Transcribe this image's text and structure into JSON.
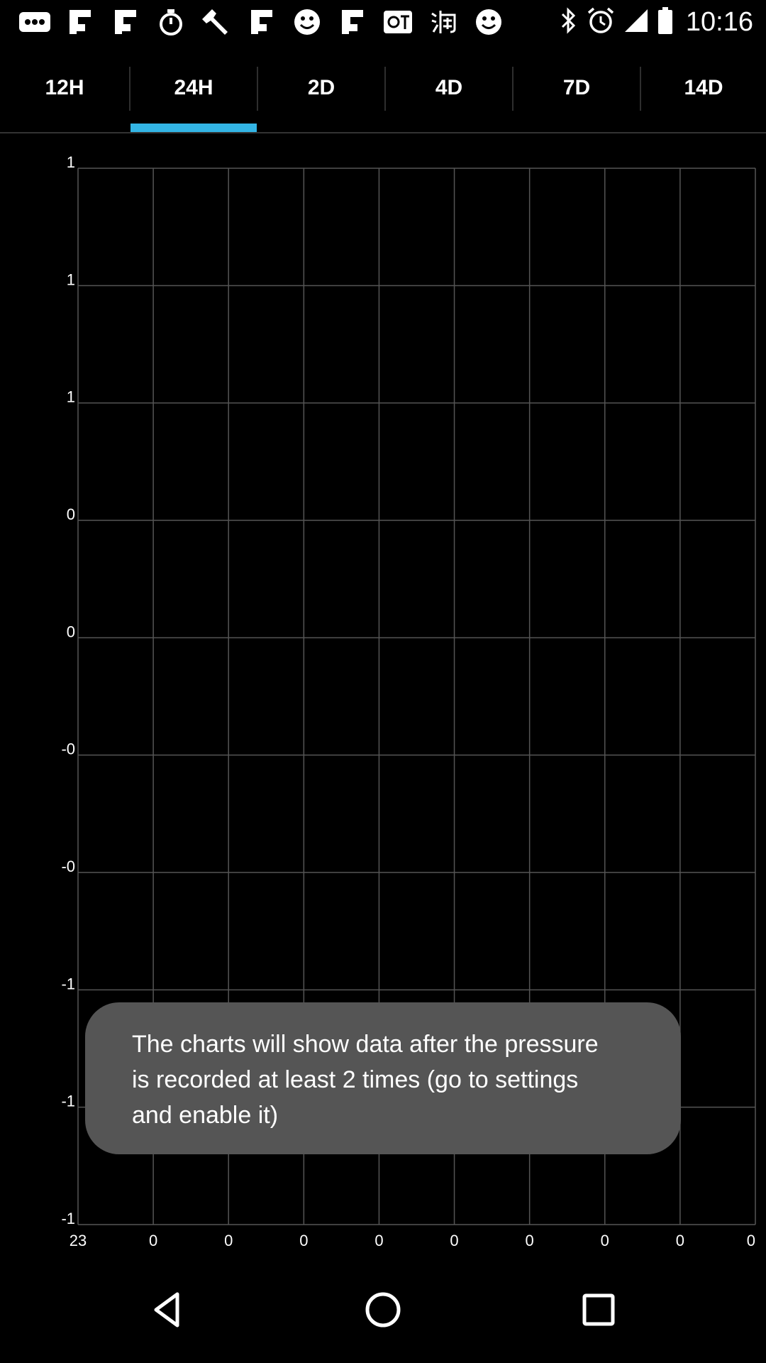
{
  "status_bar": {
    "left_icons": [
      "more-dots-icon",
      "flipboard-icon",
      "flipboard-icon",
      "stopwatch-icon",
      "wrench-icon",
      "flipboard-icon",
      "smiley-icon",
      "flipboard-icon",
      "qt-icon",
      "taobao-icon",
      "smiley-icon"
    ],
    "right_icons": [
      "bluetooth-icon",
      "alarm-icon",
      "signal-icon",
      "battery-icon"
    ],
    "time": "10:16"
  },
  "tabs": {
    "items": [
      {
        "label": "12H"
      },
      {
        "label": "24H"
      },
      {
        "label": "2D"
      },
      {
        "label": "4D"
      },
      {
        "label": "7D"
      },
      {
        "label": "14D"
      }
    ],
    "selected": "24H",
    "accent_color": "#33b5e5"
  },
  "chart_data": {
    "type": "line",
    "title": "",
    "xlabel": "",
    "ylabel": "",
    "y_tick_labels": [
      "1",
      "1",
      "1",
      "0",
      "0",
      "-0",
      "-0",
      "-1",
      "-1",
      "-1"
    ],
    "x_tick_labels": [
      "23",
      "0",
      "0",
      "0",
      "0",
      "0",
      "0",
      "0",
      "0",
      "0"
    ],
    "series": [],
    "grid": true,
    "grid_color": "#555555"
  },
  "toast": {
    "message": "The charts will show data after the pressure is recorded at least 2 times (go to settings and enable it)"
  },
  "nav_bar": {
    "icons": [
      "back-icon",
      "home-icon",
      "recents-icon"
    ]
  }
}
